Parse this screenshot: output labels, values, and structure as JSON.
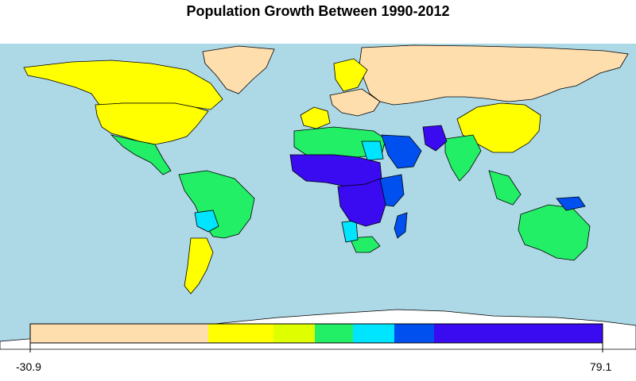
{
  "title": "Population Growth Between 1990-2012",
  "colors": {
    "ocean": "#add8e6",
    "border": "#000000",
    "antarctica": "#ffffff",
    "bins": [
      "#ffdead",
      "#ffff00",
      "#dfff00",
      "#22ee66",
      "#00e5ff",
      "#0050f0",
      "#3a0af0"
    ]
  },
  "legend": {
    "min_label": "-30.9",
    "max_label": "79.1",
    "min": -30.9,
    "max": 79.1,
    "bins": [
      {
        "from": -30.9,
        "to": 0.0,
        "color": "#ffdead"
      },
      {
        "from": 0.0,
        "to": 10.0,
        "color": "#ffff00"
      },
      {
        "from": 10.0,
        "to": 17.0,
        "color": "#dfff00"
      },
      {
        "from": 17.0,
        "to": 27.0,
        "color": "#22ee66"
      },
      {
        "from": 27.0,
        "to": 35.0,
        "color": "#00e5ff"
      },
      {
        "from": 35.0,
        "to": 50.0,
        "color": "#0050f0"
      },
      {
        "from": 50.0,
        "to": 79.1,
        "color": "#3a0af0"
      }
    ]
  }
}
